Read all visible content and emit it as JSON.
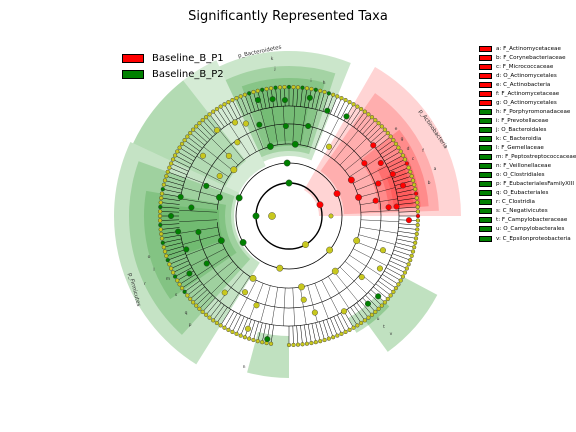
{
  "title": "Significantly Represented Taxa",
  "colors": {
    "p1": "#ff0000",
    "p2": "#008000",
    "ns": "#c8c81e"
  },
  "groups": [
    {
      "name": "Baseline_B_P1",
      "color": "#ff0000"
    },
    {
      "name": "Baseline_B_P2",
      "color": "#008000"
    }
  ],
  "taxa_legend": [
    {
      "label": "a: F_Actinomycetaceae",
      "group": "p1"
    },
    {
      "label": "b: F_Corynebacteriaceae",
      "group": "p1"
    },
    {
      "label": "c: F_Micrococcaceae",
      "group": "p1"
    },
    {
      "label": "d: O_Actinomycetales",
      "group": "p1"
    },
    {
      "label": "e: C_Actinobacteria",
      "group": "p1"
    },
    {
      "label": "f: F_Actinomycetaceae",
      "group": "p1"
    },
    {
      "label": "g: O_Actinomycetales",
      "group": "p1"
    },
    {
      "label": "h: F_Porphyromonadaceae",
      "group": "p2"
    },
    {
      "label": "i: F_Prevotellaceae",
      "group": "p2"
    },
    {
      "label": "j: O_Bacteroidales",
      "group": "p2"
    },
    {
      "label": "k: C_Bacteroidia",
      "group": "p2"
    },
    {
      "label": "l: F_Gemellaceae",
      "group": "p2"
    },
    {
      "label": "m: F_Peptostreptococcaceae",
      "group": "p2"
    },
    {
      "label": "n: F_Veillonellaceae",
      "group": "p2"
    },
    {
      "label": "o: O_Clostridiales",
      "group": "p2"
    },
    {
      "label": "p: F_EubacterialesFamilyXIII",
      "group": "p2"
    },
    {
      "label": "q: O_Eubacteriales",
      "group": "p2"
    },
    {
      "label": "r: C_Clostridia",
      "group": "p2"
    },
    {
      "label": "s: C_Negativicutes",
      "group": "p2"
    },
    {
      "label": "t: F_Campylobacteraceae",
      "group": "p2"
    },
    {
      "label": "u: O_Campylobacterales",
      "group": "p2"
    },
    {
      "label": "v: C_Epsilonproteobacteria",
      "group": "p2"
    }
  ],
  "clades": [
    {
      "label": "p_Bacteroidetes",
      "group": "p2"
    },
    {
      "label": "p_Actinobacteria",
      "group": "p1"
    },
    {
      "label": "p_Firmicutes",
      "group": "p2"
    }
  ]
}
